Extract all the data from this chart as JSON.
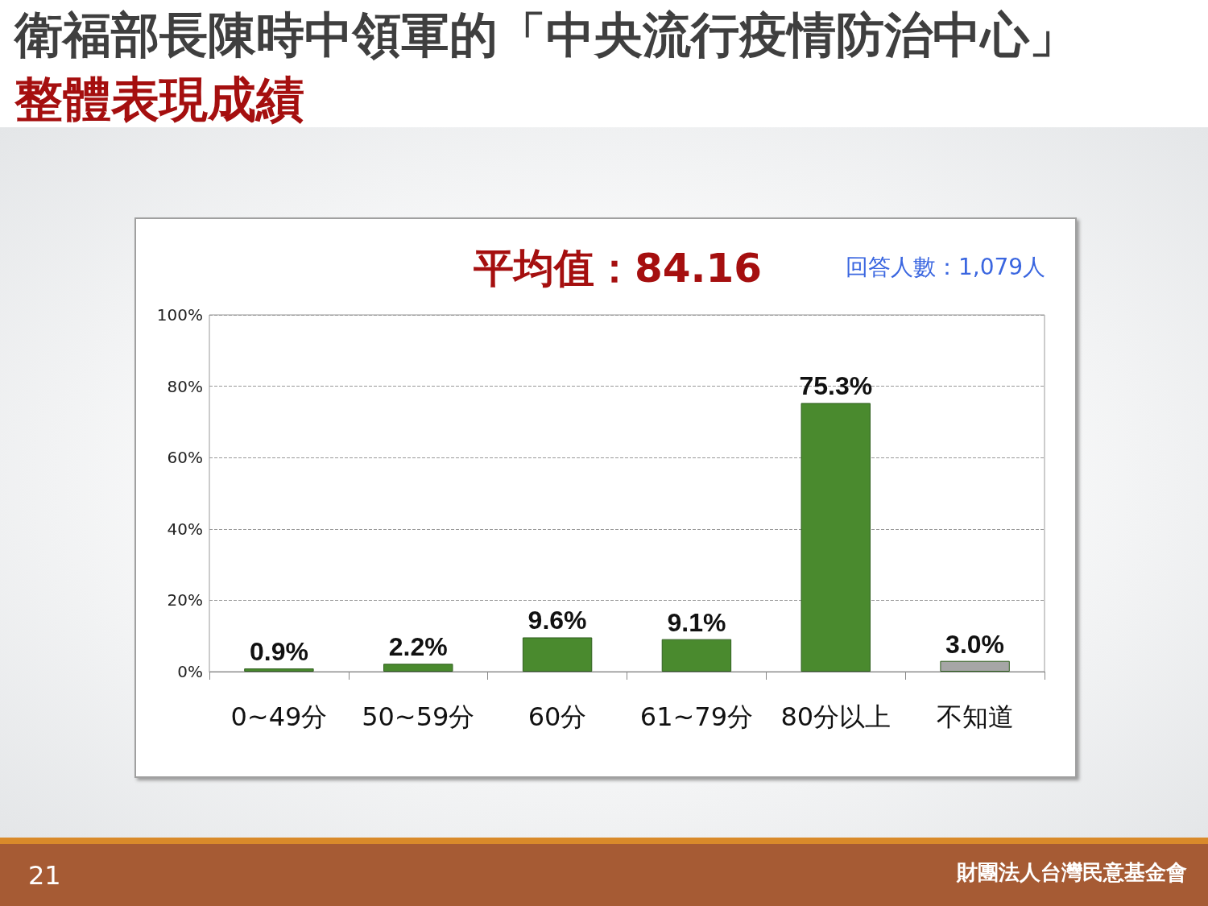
{
  "chart_data": {
    "type": "bar",
    "title": "衛福部長陳時中領軍的「中央流行疫情防治中心」",
    "subtitle": "整體表現成績",
    "categories": [
      "0~49分",
      "50~59分",
      "60分",
      "61~79分",
      "80分以上",
      "不知道"
    ],
    "values": [
      0.9,
      2.2,
      9.6,
      9.1,
      75.3,
      3.0
    ],
    "colors": [
      "#4a8a2e",
      "#4a8a2e",
      "#4a8a2e",
      "#4a8a2e",
      "#4a8a2e",
      "#a6a6a6"
    ],
    "value_labels": [
      "0.9%",
      "2.2%",
      "9.6%",
      "9.1%",
      "75.3%",
      "3.0%"
    ],
    "ylim": [
      0,
      100
    ],
    "yticks": [
      {
        "value": 0,
        "label": "0%"
      },
      {
        "value": 20,
        "label": "20%"
      },
      {
        "value": 40,
        "label": "40%"
      },
      {
        "value": 60,
        "label": "60%"
      },
      {
        "value": 80,
        "label": "80%"
      },
      {
        "value": 100,
        "label": "100%"
      }
    ],
    "grid": "y",
    "annotations": [
      "平均值：84.16",
      "回答人數：1,079人",
      "21",
      "財團法人台灣民意基金會"
    ]
  }
}
